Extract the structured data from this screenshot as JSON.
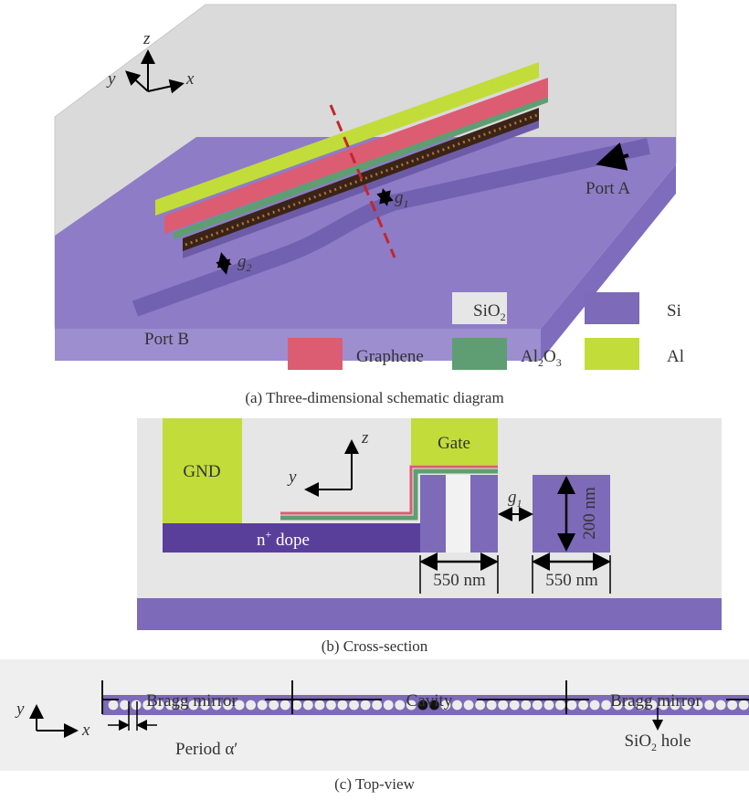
{
  "panel_a": {
    "axis_z": "z",
    "axis_y": "y",
    "axis_x": "x",
    "g1": [
      "g",
      "1"
    ],
    "g2": [
      "g",
      "2"
    ],
    "port_a": "Port A",
    "port_b": "Port B",
    "legend": [
      {
        "label": [
          "SiO",
          "2"
        ],
        "color": "#e6e6e6"
      },
      {
        "label": [
          "Si"
        ],
        "color": "#7d6ab8"
      },
      {
        "label": [
          "Graphene"
        ],
        "color": "#dc5c72"
      },
      {
        "label": [
          "Al",
          "2",
          "O",
          "3"
        ],
        "color": "#5e9e72"
      },
      {
        "label": [
          "Al"
        ],
        "color": "#c2dc3a"
      }
    ],
    "caption": "(a) Three-dimensional schematic diagram"
  },
  "panel_b": {
    "gnd": "GND",
    "gate": "Gate",
    "axis_z": "z",
    "axis_y": "y",
    "g1": [
      "g",
      "1"
    ],
    "height": "200 nm",
    "dope": [
      "n",
      "+",
      " dope"
    ],
    "width_left": "550 nm",
    "width_right": "550 nm",
    "caption": "(b) Cross-section"
  },
  "panel_c": {
    "mirror_left": "Bragg mirror",
    "cavity": "Cavity",
    "mirror_right": "Bragg mirror",
    "axis_y": "y",
    "axis_x": "x",
    "period": "Period α′",
    "hole": [
      "SiO",
      "2",
      " hole"
    ],
    "caption": "(c) Top-view"
  }
}
